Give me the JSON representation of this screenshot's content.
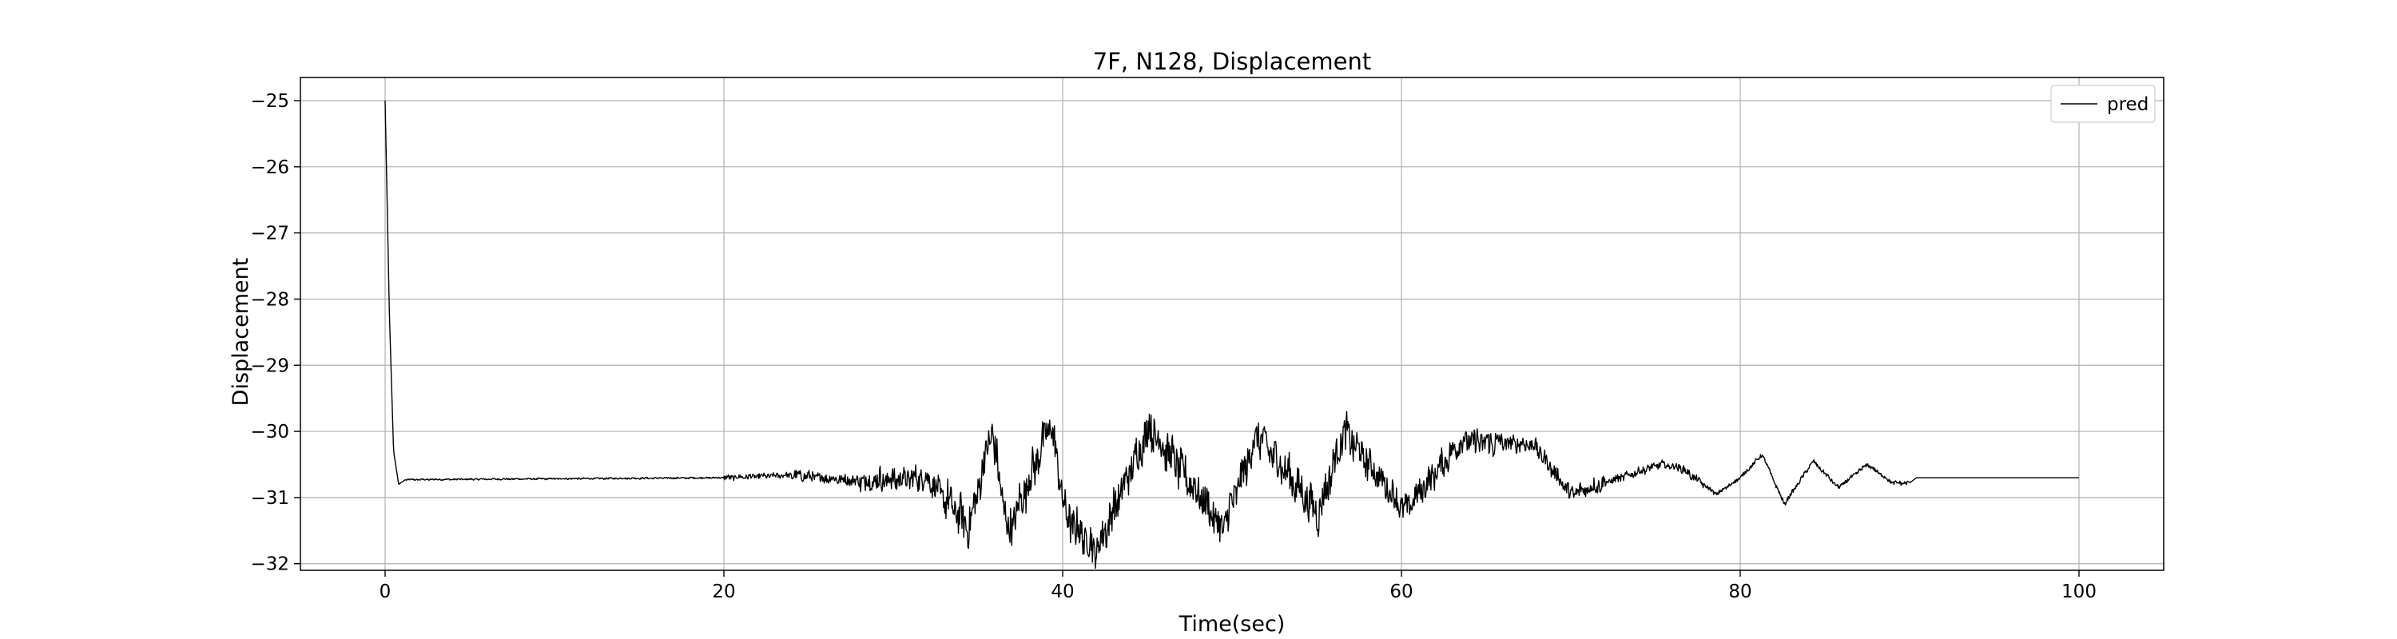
{
  "chart_data": {
    "type": "line",
    "title": "7F, N128, Displacement",
    "xlabel": "Time(sec)",
    "ylabel": "Displacement",
    "xlim": [
      -5,
      105
    ],
    "ylim": [
      -32.1,
      -24.65
    ],
    "xticks": [
      0,
      20,
      40,
      60,
      80,
      100
    ],
    "yticks": [
      -25,
      -26,
      -27,
      -28,
      -29,
      -30,
      -31,
      -32
    ],
    "grid": true,
    "legend_position": "top-right",
    "series": [
      {
        "name": "pred",
        "color": "#000000",
        "x_start": 0,
        "x_end": 100,
        "initial_value": -25.0,
        "baseline": -30.7,
        "keypoints": [
          [
            0.0,
            -25.0
          ],
          [
            0.25,
            -28.2
          ],
          [
            0.5,
            -30.3
          ],
          [
            0.8,
            -30.8
          ],
          [
            1.2,
            -30.73
          ],
          [
            20.0,
            -30.7
          ],
          [
            24.0,
            -30.66
          ],
          [
            28.0,
            -30.75
          ],
          [
            32.0,
            -30.7
          ],
          [
            34.5,
            -31.45
          ],
          [
            35.8,
            -29.98
          ],
          [
            36.8,
            -31.55
          ],
          [
            39.3,
            -29.87
          ],
          [
            40.2,
            -31.3
          ],
          [
            42.0,
            -31.8
          ],
          [
            45.1,
            -29.93
          ],
          [
            48.6,
            -31.15
          ],
          [
            49.4,
            -31.5
          ],
          [
            51.5,
            -30.05
          ],
          [
            55.1,
            -31.25
          ],
          [
            56.6,
            -30.0
          ],
          [
            60.2,
            -31.2
          ],
          [
            63.5,
            -30.15
          ],
          [
            67.8,
            -30.2
          ],
          [
            70.0,
            -30.95
          ],
          [
            75.3,
            -30.5
          ],
          [
            76.5,
            -30.55
          ],
          [
            78.6,
            -30.95
          ],
          [
            80.0,
            -30.7
          ],
          [
            81.3,
            -30.35
          ],
          [
            82.6,
            -31.1
          ],
          [
            84.3,
            -30.45
          ],
          [
            85.8,
            -30.85
          ],
          [
            87.5,
            -30.5
          ],
          [
            89.0,
            -30.78
          ],
          [
            90.0,
            -30.78
          ],
          [
            90.4,
            -30.7
          ],
          [
            100.0,
            -30.7
          ]
        ]
      }
    ]
  }
}
